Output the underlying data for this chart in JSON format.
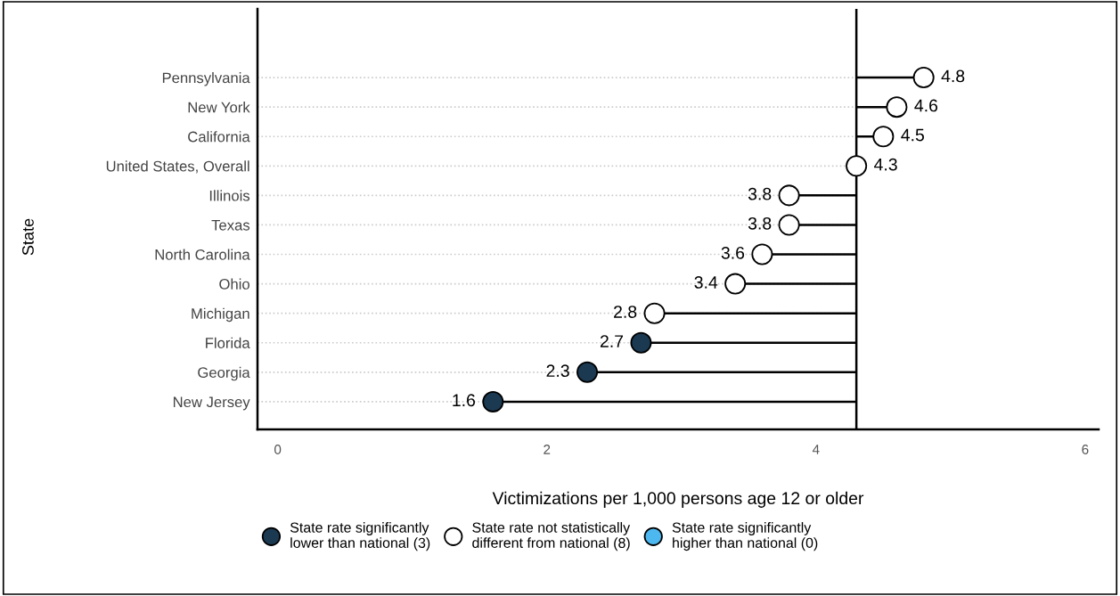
{
  "chart_data": {
    "type": "lollipop",
    "orientation": "horizontal",
    "xlabel": "Victimizations per 1,000 persons age 12 or older",
    "ylabel": "State",
    "categories": [
      "Pennsylvania",
      "New York",
      "California",
      "United States, Overall",
      "Illinois",
      "Texas",
      "North Carolina",
      "Ohio",
      "Michigan",
      "Florida",
      "Georgia",
      "New Jersey"
    ],
    "series": [
      {
        "name": "State rate significantly\nlower than national (3)",
        "color": "#1b3a52",
        "values": [
          null,
          null,
          null,
          null,
          null,
          null,
          null,
          null,
          null,
          2.7,
          2.3,
          1.6
        ]
      },
      {
        "name": "State rate not statistically\ndifferent from national (8)",
        "color": "#ffffff",
        "values": [
          4.8,
          4.6,
          4.5,
          4.3,
          3.8,
          3.8,
          3.6,
          3.4,
          2.8,
          null,
          null,
          null
        ]
      },
      {
        "name": "State rate significantly\nhigher than national (0)",
        "color": "#4db8f0",
        "values": [
          null,
          null,
          null,
          null,
          null,
          null,
          null,
          null,
          null,
          null,
          null,
          null
        ]
      }
    ],
    "ref_lines": [
      {
        "axis": "x",
        "value": 4.3,
        "color": "#000000"
      }
    ],
    "xlim": [
      -0.15,
      6.1
    ],
    "xticks": [
      0,
      2,
      4,
      6
    ],
    "grid": "y",
    "legend": "bottom",
    "marker": "circle",
    "data_labels": true
  }
}
